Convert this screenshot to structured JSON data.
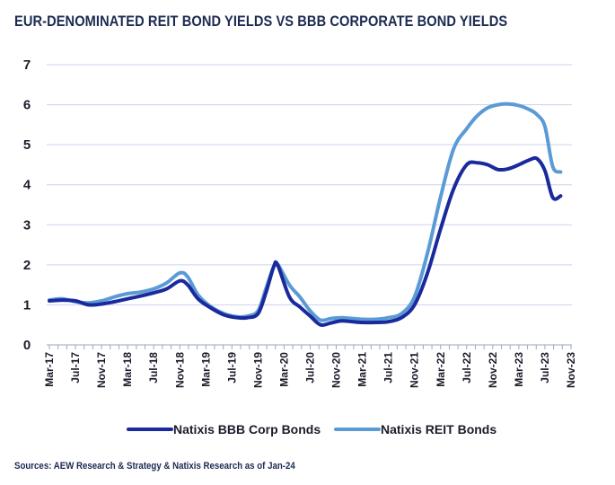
{
  "chart_data": {
    "type": "line",
    "title": "EUR-DENOMINATED REIT BOND YIELDS VS BBB CORPORATE BOND YIELDS",
    "xlabel": "",
    "ylabel": "",
    "ylim": [
      0,
      7
    ],
    "yticks": [
      "0",
      "1",
      "2",
      "3",
      "4",
      "5",
      "6",
      "7"
    ],
    "grid": true,
    "legend": "bottom",
    "categories": [
      "Mar-17",
      "Jul-17",
      "Nov-17",
      "Mar-18",
      "Jul-18",
      "Nov-18",
      "Mar-19",
      "Jul-19",
      "Nov-19",
      "Mar-20",
      "Jul-20",
      "Nov-20",
      "Mar-21",
      "Jul-21",
      "Nov-21",
      "Mar-22",
      "Jul-22",
      "Nov-22",
      "Mar-23",
      "Jul-23",
      "Nov-23"
    ],
    "series": [
      {
        "name": "Natixis BBB Corp Bonds",
        "color": "#1a2a9c",
        "values": [
          [
            0,
            1.1
          ],
          [
            0.5,
            1.12
          ],
          [
            1,
            1.1
          ],
          [
            1.5,
            1.0
          ],
          [
            2,
            1.02
          ],
          [
            2.5,
            1.08
          ],
          [
            3,
            1.15
          ],
          [
            3.5,
            1.22
          ],
          [
            4,
            1.3
          ],
          [
            4.5,
            1.4
          ],
          [
            5,
            1.6
          ],
          [
            5.3,
            1.5
          ],
          [
            5.7,
            1.15
          ],
          [
            6.2,
            0.92
          ],
          [
            6.7,
            0.75
          ],
          [
            7.2,
            0.68
          ],
          [
            7.6,
            0.68
          ],
          [
            8,
            0.78
          ],
          [
            8.3,
            1.3
          ],
          [
            8.6,
            1.95
          ],
          [
            8.75,
            2.0
          ],
          [
            9.2,
            1.2
          ],
          [
            9.6,
            0.95
          ],
          [
            10,
            0.72
          ],
          [
            10.4,
            0.5
          ],
          [
            10.8,
            0.55
          ],
          [
            11.2,
            0.6
          ],
          [
            11.6,
            0.58
          ],
          [
            12,
            0.56
          ],
          [
            12.5,
            0.56
          ],
          [
            13,
            0.58
          ],
          [
            13.5,
            0.68
          ],
          [
            14,
            1.0
          ],
          [
            14.5,
            1.8
          ],
          [
            15,
            2.9
          ],
          [
            15.5,
            3.9
          ],
          [
            16,
            4.5
          ],
          [
            16.4,
            4.55
          ],
          [
            16.8,
            4.5
          ],
          [
            17.2,
            4.38
          ],
          [
            17.6,
            4.4
          ],
          [
            18,
            4.5
          ],
          [
            18.4,
            4.62
          ],
          [
            18.7,
            4.65
          ],
          [
            19,
            4.35
          ],
          [
            19.3,
            3.68
          ],
          [
            19.6,
            3.72
          ]
        ]
      },
      {
        "name": "Natixis REIT Bonds",
        "color": "#5b9bd5",
        "values": [
          [
            0,
            1.12
          ],
          [
            0.5,
            1.15
          ],
          [
            1,
            1.08
          ],
          [
            1.5,
            1.05
          ],
          [
            2,
            1.1
          ],
          [
            2.5,
            1.2
          ],
          [
            3,
            1.28
          ],
          [
            3.5,
            1.32
          ],
          [
            4,
            1.4
          ],
          [
            4.5,
            1.55
          ],
          [
            5,
            1.8
          ],
          [
            5.3,
            1.7
          ],
          [
            5.7,
            1.25
          ],
          [
            6.2,
            0.95
          ],
          [
            6.7,
            0.78
          ],
          [
            7.2,
            0.7
          ],
          [
            7.6,
            0.72
          ],
          [
            8,
            0.85
          ],
          [
            8.3,
            1.4
          ],
          [
            8.6,
            1.95
          ],
          [
            8.75,
            2.02
          ],
          [
            9.2,
            1.5
          ],
          [
            9.6,
            1.2
          ],
          [
            10,
            0.85
          ],
          [
            10.4,
            0.62
          ],
          [
            10.8,
            0.66
          ],
          [
            11.2,
            0.68
          ],
          [
            11.6,
            0.66
          ],
          [
            12,
            0.64
          ],
          [
            12.5,
            0.64
          ],
          [
            13,
            0.68
          ],
          [
            13.5,
            0.78
          ],
          [
            14,
            1.2
          ],
          [
            14.5,
            2.3
          ],
          [
            15,
            3.7
          ],
          [
            15.5,
            4.9
          ],
          [
            16,
            5.4
          ],
          [
            16.4,
            5.72
          ],
          [
            16.8,
            5.92
          ],
          [
            17.2,
            6.0
          ],
          [
            17.6,
            6.02
          ],
          [
            18,
            5.98
          ],
          [
            18.4,
            5.88
          ],
          [
            18.7,
            5.75
          ],
          [
            19,
            5.45
          ],
          [
            19.3,
            4.45
          ],
          [
            19.6,
            4.32
          ]
        ]
      }
    ]
  },
  "source_note": "Sources: AEW Research & Strategy & Natixis Research as of Jan-24"
}
